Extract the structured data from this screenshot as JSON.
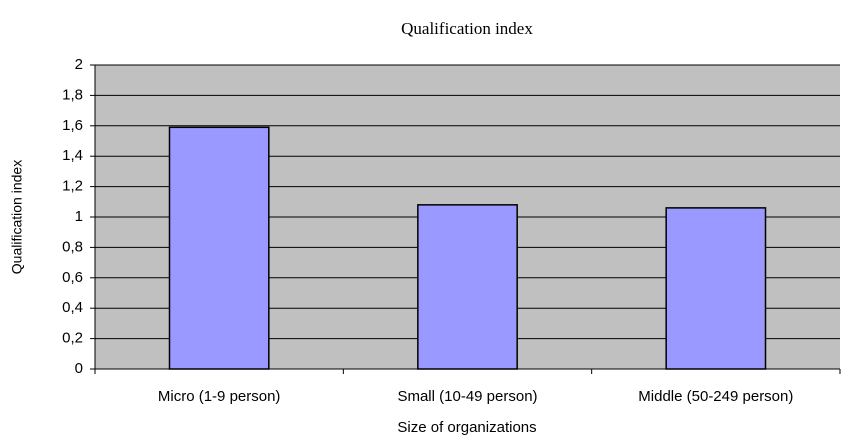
{
  "chart_data": {
    "type": "bar",
    "title": "Qualification index",
    "x_label": "Size of organizations",
    "y_label": "Qualification index",
    "categories": [
      "Micro (1-9 person)",
      "Small (10-49 person)",
      "Middle (50-249 person)"
    ],
    "values": [
      1.59,
      1.08,
      1.06
    ],
    "color": "#9999ff",
    "ylim": [
      0,
      2
    ],
    "yticks": [
      0,
      {
        "value": 0.2,
        "label": "0,2"
      },
      {
        "value": 0.4,
        "label": "0,4"
      },
      {
        "value": 0.6,
        "label": "0,6"
      },
      {
        "value": 0.8,
        "label": "0,8"
      },
      1,
      {
        "value": 1.2,
        "label": "1,2"
      },
      {
        "value": 1.4,
        "label": "1,4"
      },
      {
        "value": 1.6,
        "label": "1,6"
      },
      {
        "value": 1.8,
        "label": "1,8"
      },
      2
    ],
    "grid": true
  }
}
